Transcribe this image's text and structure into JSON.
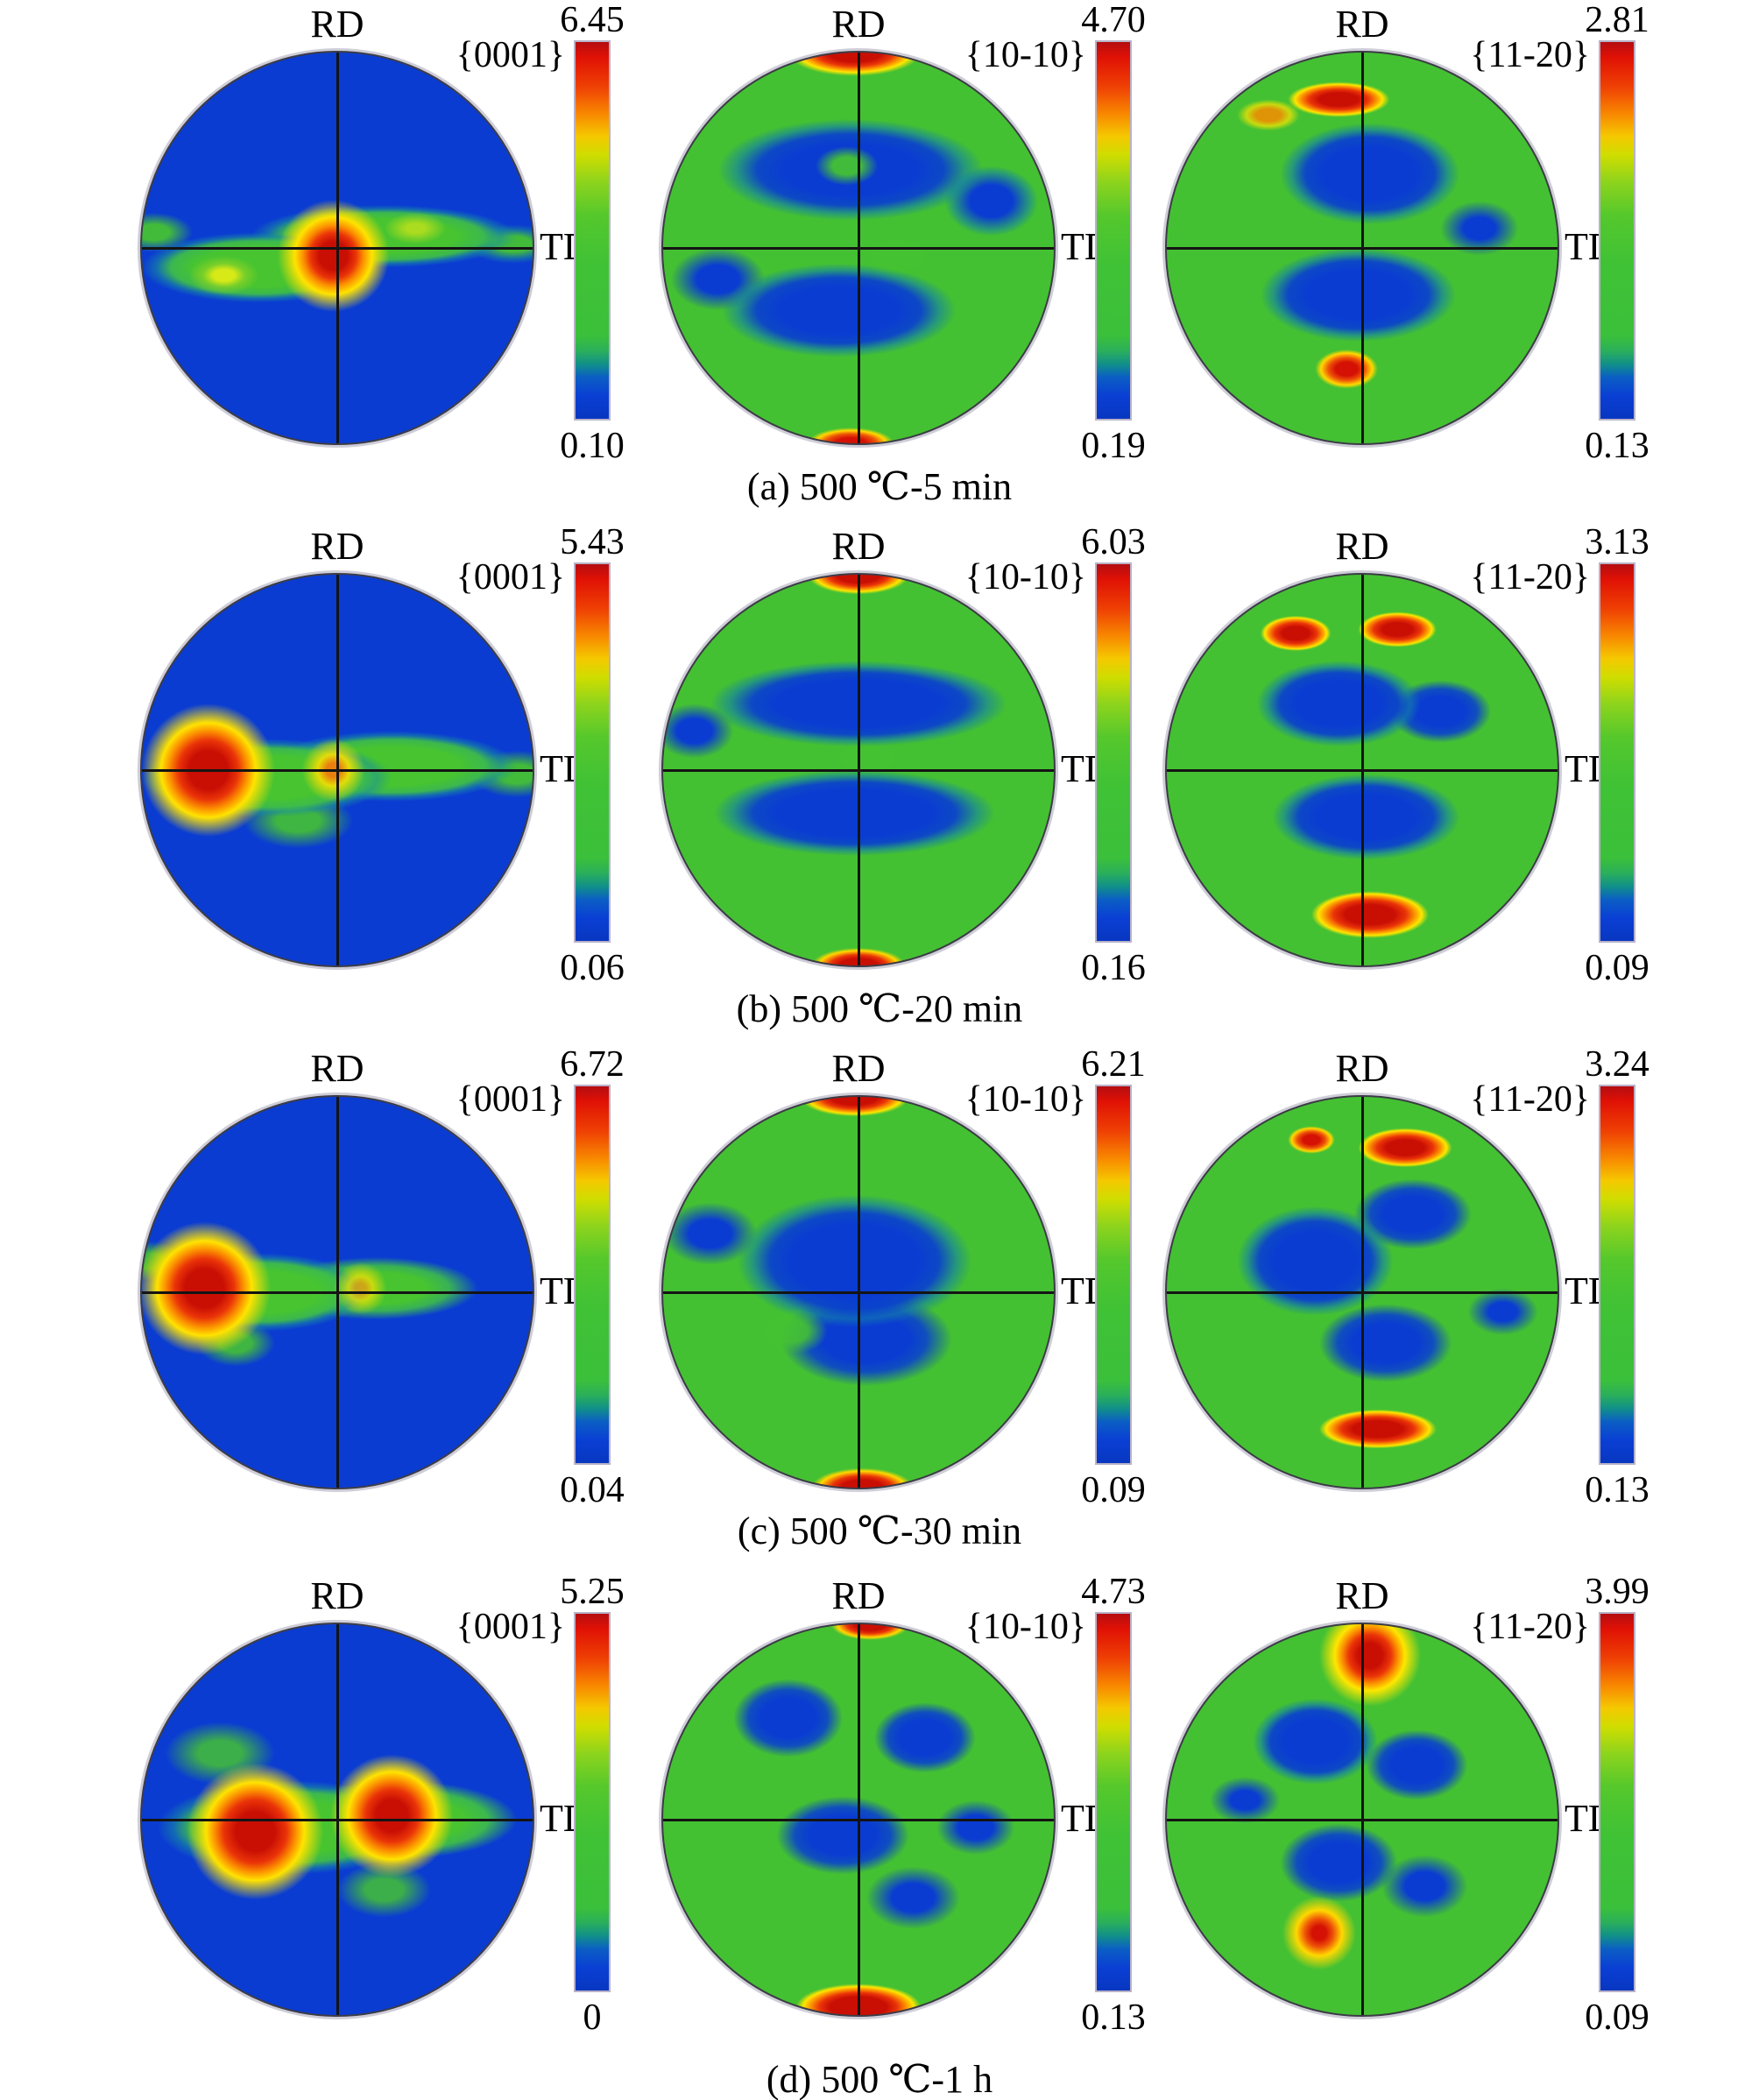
{
  "figure": {
    "palette": {
      "intensity_high": "#d21008",
      "intensity_mid": "#ffe600",
      "intensity_green": "#44c132",
      "intensity_low": "#0a3cd2"
    },
    "rows": [
      {
        "caption": "(a) 500 ℃-5 min",
        "panels": [
          {
            "rd": "RD",
            "td": "TD",
            "plane": "{0001}",
            "max": "6.45",
            "min": "0.10"
          },
          {
            "rd": "RD",
            "td": "TD",
            "plane": "{10-10}",
            "max": "4.70",
            "min": "0.19"
          },
          {
            "rd": "RD",
            "td": "TD",
            "plane": "{11-20}",
            "max": "2.81",
            "min": "0.13"
          }
        ]
      },
      {
        "caption": "(b) 500 ℃-20 min",
        "panels": [
          {
            "rd": "RD",
            "td": "TD",
            "plane": "{0001}",
            "max": "5.43",
            "min": "0.06"
          },
          {
            "rd": "RD",
            "td": "TD",
            "plane": "{10-10}",
            "max": "6.03",
            "min": "0.16"
          },
          {
            "rd": "RD",
            "td": "TD",
            "plane": "{11-20}",
            "max": "3.13",
            "min": "0.09"
          }
        ]
      },
      {
        "caption": "(c) 500 ℃-30 min",
        "panels": [
          {
            "rd": "RD",
            "td": "TD",
            "plane": "{0001}",
            "max": "6.72",
            "min": "0.04"
          },
          {
            "rd": "RD",
            "td": "TD",
            "plane": "{10-10}",
            "max": "6.21",
            "min": "0.09"
          },
          {
            "rd": "RD",
            "td": "TD",
            "plane": "{11-20}",
            "max": "3.24",
            "min": "0.13"
          }
        ]
      },
      {
        "caption": "(d) 500 ℃-1 h",
        "panels": [
          {
            "rd": "RD",
            "td": "TD",
            "plane": "{0001}",
            "max": "5.25",
            "min": "0"
          },
          {
            "rd": "RD",
            "td": "TD",
            "plane": "{10-10}",
            "max": "4.73",
            "min": "0.13"
          },
          {
            "rd": "RD",
            "td": "TD",
            "plane": "{11-20}",
            "max": "3.99",
            "min": "0.09"
          }
        ]
      }
    ]
  },
  "chart_data": [
    {
      "type": "heatmap",
      "subtype": "pole-figure",
      "condition": "500 ℃-5 min",
      "plane": "{0001}",
      "axis_top": "RD",
      "axis_right": "TD",
      "intensity_max": 6.45,
      "intensity_min": 0.1,
      "colormap": "jet (red=max, blue=min)",
      "distribution": "blue background with green band along TD axis; red intensity maximum at the center of the pole figure"
    },
    {
      "type": "heatmap",
      "subtype": "pole-figure",
      "condition": "500 ℃-5 min",
      "plane": "{10-10}",
      "axis_top": "RD",
      "axis_right": "TD",
      "intensity_max": 4.7,
      "intensity_min": 0.19,
      "colormap": "jet (red=max, blue=min)",
      "distribution": "green background; red maxima at top and bottom RD poles; blue minima in upper and lower interior bands"
    },
    {
      "type": "heatmap",
      "subtype": "pole-figure",
      "condition": "500 ℃-5 min",
      "plane": "{11-20}",
      "axis_top": "RD",
      "axis_right": "TD",
      "intensity_max": 2.81,
      "intensity_min": 0.13,
      "colormap": "jet (red=max, blue=min)",
      "distribution": "green background; elongated red maximum near the top and red spot near the bottom; blue minima above and below center"
    },
    {
      "type": "heatmap",
      "subtype": "pole-figure",
      "condition": "500 ℃-20 min",
      "plane": "{0001}",
      "axis_top": "RD",
      "axis_right": "TD",
      "intensity_max": 5.43,
      "intensity_min": 0.06,
      "colormap": "jet (red=max, blue=min)",
      "distribution": "blue background with green band along TD axis; strong red maximum left of center on the TD axis"
    },
    {
      "type": "heatmap",
      "subtype": "pole-figure",
      "condition": "500 ℃-20 min",
      "plane": "{10-10}",
      "axis_top": "RD",
      "axis_right": "TD",
      "intensity_max": 6.03,
      "intensity_min": 0.16,
      "colormap": "jet (red=max, blue=min)",
      "distribution": "green background; red maxima at top and bottom RD poles; two broad blue horizontal minima bands"
    },
    {
      "type": "heatmap",
      "subtype": "pole-figure",
      "condition": "500 ℃-20 min",
      "plane": "{11-20}",
      "axis_top": "RD",
      "axis_right": "TD",
      "intensity_max": 3.13,
      "intensity_min": 0.09,
      "colormap": "jet (red=max, blue=min)",
      "distribution": "green background; two red maxima near the top and a strong red maximum near the bottom; blue minima above and below center"
    },
    {
      "type": "heatmap",
      "subtype": "pole-figure",
      "condition": "500 ℃-30 min",
      "plane": "{0001}",
      "axis_top": "RD",
      "axis_right": "TD",
      "intensity_max": 6.72,
      "intensity_min": 0.04,
      "colormap": "jet (red=max, blue=min)",
      "distribution": "blue background with green band along TD axis; red maximum left of center on the TD axis"
    },
    {
      "type": "heatmap",
      "subtype": "pole-figure",
      "condition": "500 ℃-30 min",
      "plane": "{10-10}",
      "axis_top": "RD",
      "axis_right": "TD",
      "intensity_max": 6.21,
      "intensity_min": 0.09,
      "colormap": "jet (red=max, blue=min)",
      "distribution": "green background; red maxima at top and bottom RD poles; large blue minimum covering the center"
    },
    {
      "type": "heatmap",
      "subtype": "pole-figure",
      "condition": "500 ℃-30 min",
      "plane": "{11-20}",
      "axis_top": "RD",
      "axis_right": "TD",
      "intensity_max": 3.24,
      "intensity_min": 0.13,
      "colormap": "jet (red=max, blue=min)",
      "distribution": "green background; red maxima near top and an elongated red maximum near bottom; blue minima around center"
    },
    {
      "type": "heatmap",
      "subtype": "pole-figure",
      "condition": "500 ℃-1 h",
      "plane": "{0001}",
      "axis_top": "RD",
      "axis_right": "TD",
      "intensity_max": 5.25,
      "intensity_min": 0,
      "colormap": "jet (red=max, blue=min)",
      "distribution": "blue background with wide green band along TD axis; two red maxima, left and right of center"
    },
    {
      "type": "heatmap",
      "subtype": "pole-figure",
      "condition": "500 ℃-1 h",
      "plane": "{10-10}",
      "axis_top": "RD",
      "axis_right": "TD",
      "intensity_max": 4.73,
      "intensity_min": 0.13,
      "colormap": "jet (red=max, blue=min)",
      "distribution": "green background; red maxima at RD poles with strongest at bottom; blue minima blobs in upper half and center"
    },
    {
      "type": "heatmap",
      "subtype": "pole-figure",
      "condition": "500 ℃-1 h",
      "plane": "{11-20}",
      "axis_top": "RD",
      "axis_right": "TD",
      "intensity_max": 3.99,
      "intensity_min": 0.09,
      "colormap": "jet (red=max, blue=min)",
      "distribution": "green background; red maximum on RD axis near the top and small red spot lower left; blue minima around center"
    }
  ]
}
